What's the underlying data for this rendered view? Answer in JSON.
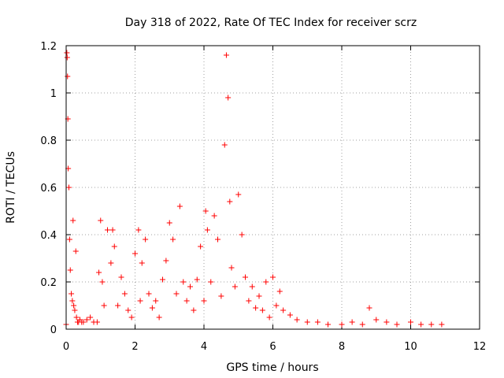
{
  "chart_data": {
    "type": "scatter",
    "title": "Day 318 of 2022, Rate Of TEC Index for receiver scrz",
    "xlabel": "GPS time / hours",
    "ylabel": "ROTI / TECUs",
    "xlim": [
      0,
      12
    ],
    "ylim": [
      0,
      1.2
    ],
    "xticks": [
      "0",
      "2",
      "4",
      "6",
      "8",
      "10",
      "12"
    ],
    "yticks": [
      "0",
      "0.2",
      "0.4",
      "0.6",
      "0.8",
      "1",
      "1.2"
    ],
    "grid": true,
    "marker": "+",
    "color": "#ff0000",
    "series": [
      {
        "x": [
          0.0,
          0.02,
          0.03,
          0.04,
          0.05,
          0.06,
          0.08,
          0.1,
          0.12,
          0.15,
          0.18,
          0.2,
          0.22,
          0.25,
          0.28,
          0.3,
          0.33,
          0.36,
          0.4,
          0.45,
          0.5,
          0.6,
          0.7,
          0.8,
          0.9,
          0.95,
          1.0,
          1.05,
          1.1,
          1.2,
          1.3,
          1.35,
          1.4,
          1.5,
          1.6,
          1.7,
          1.8,
          1.9,
          2.0,
          2.1,
          2.15,
          2.2,
          2.3,
          2.4,
          2.5,
          2.6,
          2.7,
          2.8,
          2.9,
          3.0,
          3.1,
          3.2,
          3.3,
          3.4,
          3.5,
          3.6,
          3.7,
          3.8,
          3.9,
          4.0,
          4.05,
          4.1,
          4.2,
          4.3,
          4.4,
          4.5,
          4.6,
          4.65,
          4.7,
          4.75,
          4.8,
          4.9,
          5.0,
          5.1,
          5.2,
          5.3,
          5.4,
          5.5,
          5.6,
          5.7,
          5.8,
          5.9,
          6.0,
          6.1,
          6.2,
          6.3,
          6.5,
          6.7,
          7.0,
          7.3,
          7.6,
          8.0,
          8.3,
          8.6,
          8.8,
          9.0,
          9.3,
          9.6,
          10.0,
          10.3,
          10.6,
          10.9
        ],
        "y": [
          0.02,
          1.17,
          1.15,
          1.07,
          0.89,
          0.68,
          0.6,
          0.38,
          0.25,
          0.15,
          0.12,
          0.46,
          0.1,
          0.08,
          0.33,
          0.05,
          0.03,
          0.03,
          0.04,
          0.03,
          0.03,
          0.04,
          0.05,
          0.03,
          0.03,
          0.24,
          0.46,
          0.2,
          0.1,
          0.42,
          0.28,
          0.42,
          0.35,
          0.1,
          0.22,
          0.15,
          0.08,
          0.05,
          0.32,
          0.42,
          0.12,
          0.28,
          0.38,
          0.15,
          0.09,
          0.12,
          0.05,
          0.21,
          0.29,
          0.45,
          0.38,
          0.15,
          0.52,
          0.2,
          0.12,
          0.18,
          0.08,
          0.21,
          0.35,
          0.12,
          0.5,
          0.42,
          0.2,
          0.48,
          0.38,
          0.14,
          0.78,
          1.16,
          0.98,
          0.54,
          0.26,
          0.18,
          0.57,
          0.4,
          0.22,
          0.12,
          0.18,
          0.09,
          0.14,
          0.08,
          0.2,
          0.05,
          0.22,
          0.1,
          0.16,
          0.08,
          0.06,
          0.04,
          0.03,
          0.03,
          0.02,
          0.02,
          0.03,
          0.02,
          0.09,
          0.04,
          0.03,
          0.02,
          0.03,
          0.02,
          0.02,
          0.02
        ]
      }
    ]
  }
}
